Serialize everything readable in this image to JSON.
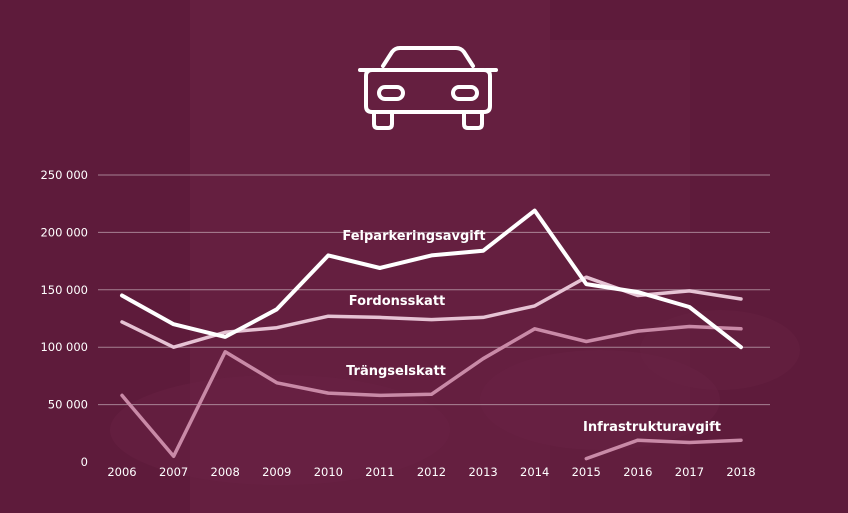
{
  "icon": "car-icon",
  "colors": {
    "background": "#5e1b3b",
    "line_primary": "#ffffff",
    "line_secondary": "#e6c3d4",
    "line_tertiary": "#c98aa7"
  },
  "chart_data": {
    "type": "line",
    "title": "",
    "xlabel": "",
    "ylabel": "",
    "x": [
      "2006",
      "2007",
      "2008",
      "2009",
      "2010",
      "2011",
      "2012",
      "2013",
      "2014",
      "2015",
      "2016",
      "2017",
      "2018"
    ],
    "ylim": [
      0,
      250000
    ],
    "yticks": [
      0,
      50000,
      100000,
      150000,
      200000,
      250000
    ],
    "ytick_labels": [
      "0",
      "50 000",
      "100 000",
      "150 000",
      "200 000",
      "250 000"
    ],
    "grid": true,
    "series": [
      {
        "name": "Felparkeringsavgift",
        "values": [
          145000,
          120000,
          109000,
          133000,
          180000,
          169000,
          180000,
          184000,
          219000,
          155000,
          148000,
          135000,
          100000
        ]
      },
      {
        "name": "Fordonsskatt",
        "values": [
          122000,
          100000,
          113000,
          117000,
          127000,
          126000,
          124000,
          126000,
          136000,
          161000,
          145000,
          149000,
          142000
        ]
      },
      {
        "name": "Trängselskatt",
        "values": [
          58000,
          5000,
          96000,
          69000,
          60000,
          58000,
          59000,
          90000,
          116000,
          105000,
          114000,
          118000,
          116000
        ]
      },
      {
        "name": "Infrastrukturavgift",
        "values": [
          null,
          null,
          null,
          null,
          null,
          null,
          null,
          null,
          null,
          3000,
          19000,
          17000,
          19000
        ]
      }
    ]
  }
}
